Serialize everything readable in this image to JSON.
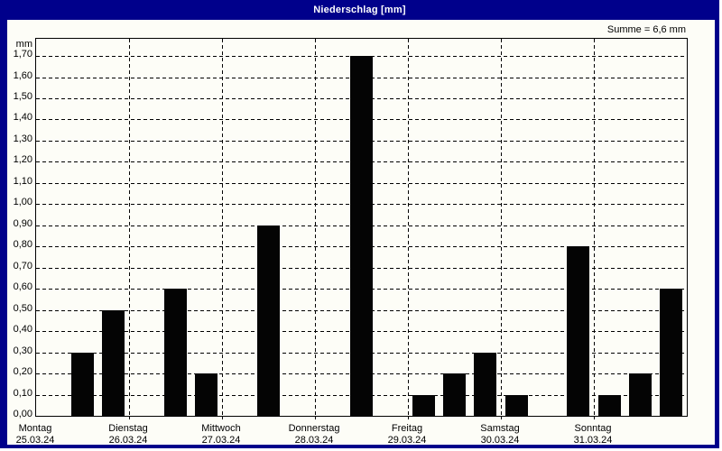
{
  "window": {
    "title": "Niederschlag [mm]"
  },
  "summary": "Summe = 6,6 mm",
  "colors": {
    "frame_navy": "#00008B",
    "title_text": "#FFFFFF",
    "background": "#FDFDF7",
    "bar": "#040404",
    "grid_and_text": "#000000"
  },
  "chart_data": {
    "type": "bar",
    "title": "Niederschlag [mm]",
    "ylabel": "mm",
    "xlabel": "",
    "ylim": [
      0,
      1.78
    ],
    "ytick_step": 0.1,
    "ytick_labels": [
      "0,00",
      "0,10",
      "0,20",
      "0,30",
      "0,40",
      "0,50",
      "0,60",
      "0,70",
      "0,80",
      "0,90",
      "1,00",
      "1,10",
      "1,20",
      "1,30",
      "1,40",
      "1,50",
      "1,60",
      "1,70"
    ],
    "grid": "dashed horizontal lines every 0.10 mm; dashed vertical lines at day boundaries",
    "legend": "none",
    "annotation": "Summe = 6,6 mm",
    "total_mm": 6.6,
    "slots_per_day": 3,
    "days": [
      {
        "weekday": "Montag",
        "date": "25.03.24",
        "values": [
          0,
          0.3,
          0.5
        ]
      },
      {
        "weekday": "Dienstag",
        "date": "26.03.24",
        "values": [
          0,
          0.6,
          0.2
        ]
      },
      {
        "weekday": "Mittwoch",
        "date": "27.03.24",
        "values": [
          0,
          0.9,
          0
        ]
      },
      {
        "weekday": "Donnerstag",
        "date": "28.03.24",
        "values": [
          0,
          1.7,
          0
        ]
      },
      {
        "weekday": "Freitag",
        "date": "29.03.24",
        "values": [
          0.1,
          0.2,
          0.3
        ]
      },
      {
        "weekday": "Samstag",
        "date": "30.03.24",
        "values": [
          0.1,
          0,
          0.8
        ]
      },
      {
        "weekday": "Sonntag",
        "date": "31.03.24",
        "values": [
          0.1,
          0.2,
          0.6
        ]
      }
    ]
  }
}
